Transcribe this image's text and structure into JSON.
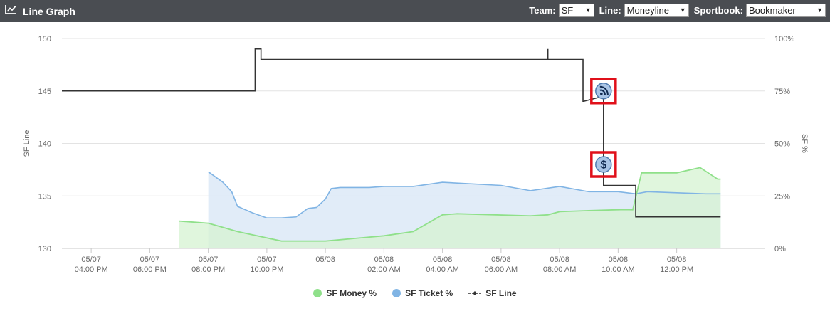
{
  "header": {
    "title": "Line Graph",
    "icon": "line-chart-icon",
    "team_label": "Team:",
    "team_value": "SF",
    "line_label": "Line:",
    "line_value": "Moneyline",
    "sportsbook_label": "Sportbook:",
    "sportsbook_value": "Bookmaker"
  },
  "colors": {
    "header_bg": "#4a4d52",
    "money": "#8fe08a",
    "money_fill": "#d6f3d2",
    "ticket": "#80b4e4",
    "ticket_fill": "#dce9f7",
    "line": "#333333",
    "marker_box": "#e0101a"
  },
  "legend": {
    "money": "SF Money %",
    "ticket": "SF Ticket %",
    "line": "SF Line"
  },
  "chart_data": {
    "type": "line",
    "ylabel": "SF Line",
    "y2label": "SF %",
    "ylim": [
      130,
      150
    ],
    "y2lim": [
      0,
      100
    ],
    "yticks": [
      "130",
      "135",
      "140",
      "145",
      "150"
    ],
    "y2ticks": [
      "0%",
      "25%",
      "50%",
      "75%",
      "100%"
    ],
    "xlim_hours": [
      -1,
      23
    ],
    "xticks": [
      {
        "t": 0,
        "date": "05/07",
        "time": "04:00 PM"
      },
      {
        "t": 2,
        "date": "05/07",
        "time": "06:00 PM"
      },
      {
        "t": 4,
        "date": "05/07",
        "time": "08:00 PM"
      },
      {
        "t": 6,
        "date": "05/07",
        "time": "10:00 PM"
      },
      {
        "t": 8,
        "date": "05/08",
        "time": ""
      },
      {
        "t": 10,
        "date": "05/08",
        "time": "02:00 AM"
      },
      {
        "t": 12,
        "date": "05/08",
        "time": "04:00 AM"
      },
      {
        "t": 14,
        "date": "05/08",
        "time": "06:00 AM"
      },
      {
        "t": 16,
        "date": "05/08",
        "time": "08:00 AM"
      },
      {
        "t": 18,
        "date": "05/08",
        "time": "10:00 AM"
      },
      {
        "t": 20,
        "date": "05/08",
        "time": "12:00 PM"
      }
    ],
    "series": [
      {
        "name": "SF Money %",
        "axis": "right",
        "points": [
          [
            3.0,
            13
          ],
          [
            4.0,
            12
          ],
          [
            5.0,
            8
          ],
          [
            6.5,
            3.5
          ],
          [
            8.0,
            3.5
          ],
          [
            10.0,
            6
          ],
          [
            11.0,
            8
          ],
          [
            12.0,
            16
          ],
          [
            12.5,
            16.5
          ],
          [
            15.0,
            15.5
          ],
          [
            15.6,
            16
          ],
          [
            16.0,
            17.5
          ],
          [
            17.0,
            18
          ],
          [
            18.2,
            18.5
          ],
          [
            18.5,
            18.4
          ],
          [
            18.8,
            36
          ],
          [
            20.0,
            36
          ],
          [
            20.8,
            38.5
          ],
          [
            21.4,
            33
          ],
          [
            21.5,
            33
          ]
        ]
      },
      {
        "name": "SF Ticket %",
        "axis": "right",
        "points": [
          [
            4.0,
            36.5
          ],
          [
            4.5,
            31.5
          ],
          [
            4.8,
            27
          ],
          [
            5.0,
            20
          ],
          [
            5.5,
            17
          ],
          [
            6.0,
            14.5
          ],
          [
            6.5,
            14.5
          ],
          [
            7.0,
            15
          ],
          [
            7.4,
            19
          ],
          [
            7.7,
            19.5
          ],
          [
            8.0,
            23.5
          ],
          [
            8.2,
            28.5
          ],
          [
            8.5,
            29
          ],
          [
            9.5,
            29
          ],
          [
            10.0,
            29.5
          ],
          [
            11.0,
            29.5
          ],
          [
            12.0,
            31.5
          ],
          [
            14.0,
            30
          ],
          [
            15.0,
            27.5
          ],
          [
            16.0,
            29.5
          ],
          [
            17.0,
            27
          ],
          [
            18.0,
            27
          ],
          [
            18.6,
            26
          ],
          [
            19.0,
            27
          ],
          [
            20.0,
            26.5
          ],
          [
            21.0,
            26
          ],
          [
            21.5,
            26
          ]
        ]
      },
      {
        "name": "SF Line",
        "axis": "left",
        "points": [
          [
            -1.0,
            145
          ],
          [
            5.6,
            145
          ],
          [
            5.6,
            149
          ],
          [
            5.8,
            149
          ],
          [
            5.8,
            148
          ],
          [
            15.6,
            148
          ],
          [
            15.6,
            149
          ],
          [
            15.6,
            148
          ],
          [
            16.8,
            148
          ],
          [
            16.8,
            144
          ],
          [
            17.5,
            144.5
          ],
          [
            17.5,
            137.5
          ],
          [
            17.5,
            136
          ],
          [
            18.6,
            136
          ],
          [
            18.6,
            133
          ],
          [
            21.5,
            133
          ]
        ]
      }
    ],
    "markers": [
      {
        "icon": "rss-icon",
        "t": 17.5,
        "value": 145
      },
      {
        "icon": "dollar-icon",
        "t": 17.5,
        "value": 138
      }
    ]
  }
}
